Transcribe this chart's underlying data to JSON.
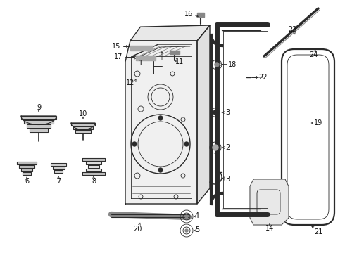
{
  "bg_color": "#ffffff",
  "line_color": "#2a2a2a",
  "text_color": "#111111",
  "label_fontsize": 7.0
}
